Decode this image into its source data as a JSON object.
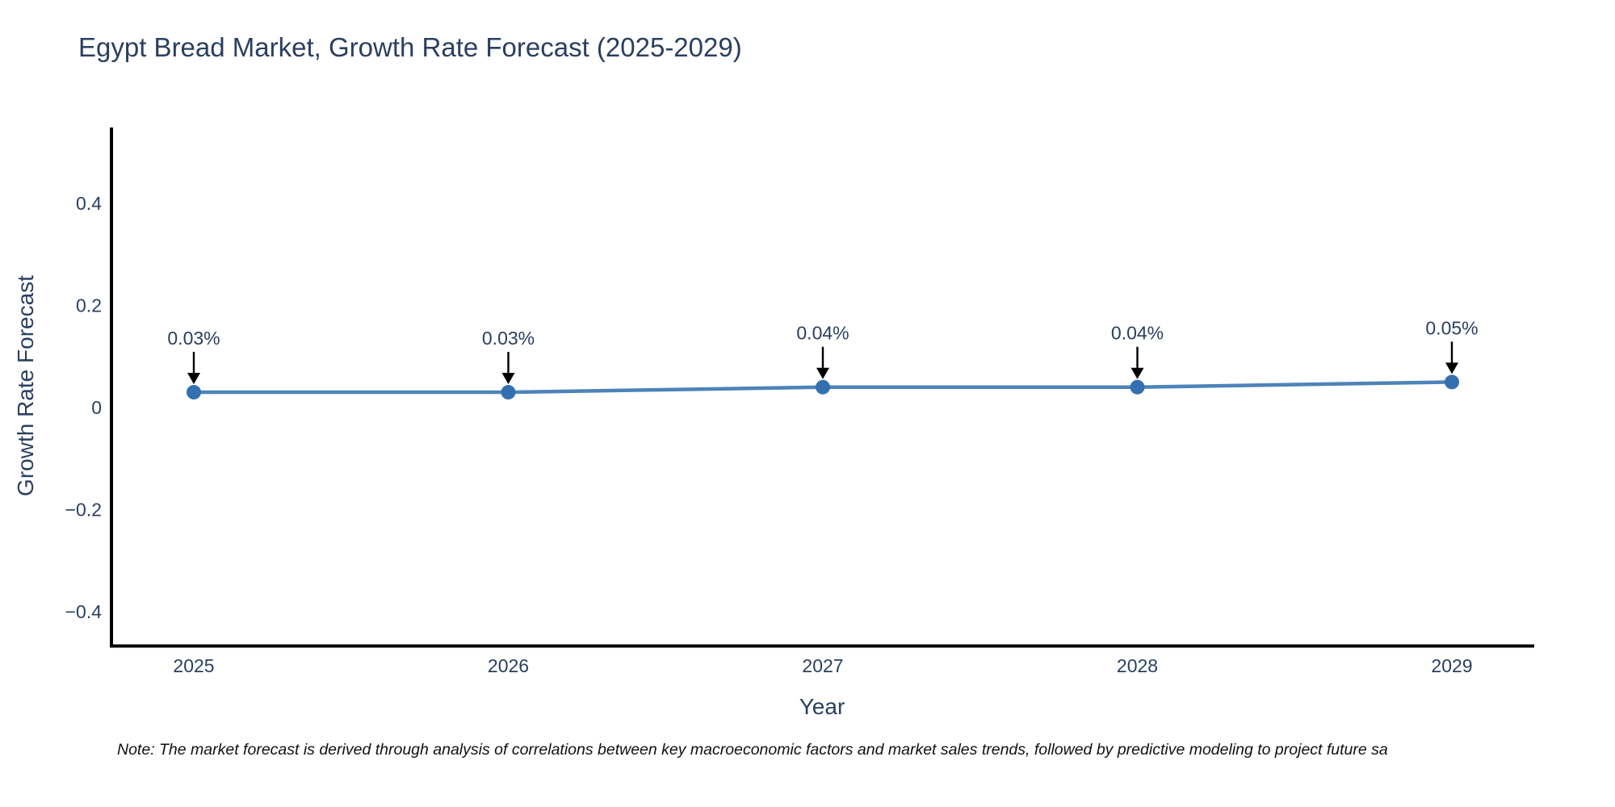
{
  "chart_data": {
    "type": "line",
    "title": "Egypt Bread Market, Growth Rate Forecast (2025-2029)",
    "xlabel": "Year",
    "ylabel": "Growth Rate Forecast",
    "x": [
      2025,
      2026,
      2027,
      2028,
      2029
    ],
    "values": [
      0.03,
      0.03,
      0.04,
      0.04,
      0.05
    ],
    "point_labels": [
      "0.03%",
      "0.03%",
      "0.04%",
      "0.04%",
      "0.05%"
    ],
    "xtick_labels": [
      "2025",
      "2026",
      "2027",
      "2028",
      "2029"
    ],
    "yticks": [
      0.4,
      0.2,
      0,
      -0.2,
      -0.4
    ],
    "ytick_labels": [
      "0.4",
      "0.2",
      "0",
      "−0.2",
      "−0.4"
    ],
    "ylim": [
      -0.47,
      0.55
    ],
    "grid": false,
    "legend": false,
    "colors": {
      "line": "#4d83b8",
      "marker": "#3470b0",
      "axis": "#000000",
      "text": "#2a3f5f",
      "arrow": "#000000"
    },
    "note": "Note: The market forecast is derived through analysis of correlations between key macroeconomic factors and market sales trends, followed by predictive modeling to project future sa"
  }
}
